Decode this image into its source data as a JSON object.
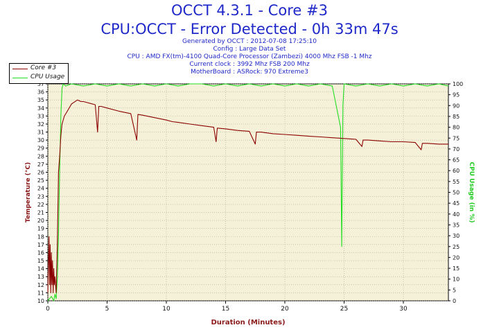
{
  "header": {
    "title": "OCCT 4.3.1 - Core #3",
    "subtitle": "CPU:OCCT - Error Detected - 0h 33m 47s",
    "generated": "Generated by OCCT : 2012-07-08 17:25:10",
    "config": "Config : Large Data Set",
    "cpu": "CPU : AMD FX(tm)-4100 Quad-Core Processor (Zambezi) 4000 Mhz FSB -1 Mhz",
    "clock": "Current clock : 3992 Mhz FSB 200 Mhz",
    "motherboard": "MotherBoard : ASRock: 970 Extreme3"
  },
  "legend": {
    "items": [
      {
        "label": "Core #3",
        "color": "#8b0000"
      },
      {
        "label": "CPU Usage",
        "color": "#22dd22"
      }
    ]
  },
  "colors": {
    "plot_bg": "#f5f1d8",
    "grid": "#a8a890",
    "temp_line": "#8b0000",
    "cpu_line": "#22dd22",
    "left_axis": "#8b1a1a",
    "right_axis": "#22cc22",
    "title": "#1f28c8"
  },
  "chart_data": {
    "type": "line",
    "xlabel": "Duration (Minutes)",
    "ylabel_left": "Temperature (°C)",
    "ylabel_right": "CPU Usage (in %)",
    "xlim": [
      0,
      33.8
    ],
    "ylim_left": [
      10,
      37
    ],
    "ylim_right": [
      0,
      100
    ],
    "x_ticks": [
      0,
      5,
      10,
      15,
      20,
      25,
      30
    ],
    "y_left_ticks": [
      10,
      11,
      12,
      13,
      14,
      15,
      16,
      17,
      18,
      19,
      20,
      21,
      22,
      23,
      24,
      25,
      26,
      27,
      28,
      29,
      30,
      31,
      32,
      33,
      34,
      35,
      36,
      37
    ],
    "y_right_ticks": [
      0,
      5,
      10,
      15,
      20,
      25,
      30,
      35,
      40,
      45,
      50,
      55,
      60,
      65,
      70,
      75,
      80,
      85,
      90,
      95,
      100
    ],
    "grid": true,
    "legend_position": "top-left",
    "series": [
      {
        "name": "Core #3",
        "axis": "left",
        "x": [
          0,
          0.1,
          0.15,
          0.2,
          0.25,
          0.3,
          0.35,
          0.4,
          0.45,
          0.5,
          0.55,
          0.6,
          0.7,
          0.8,
          0.9,
          1.0,
          1.1,
          1.2,
          1.4,
          1.6,
          1.8,
          2.0,
          2.2,
          2.5,
          2.8,
          3.0,
          3.5,
          4.0,
          4.2,
          4.3,
          4.5,
          5.0,
          6.0,
          7.0,
          7.5,
          7.6,
          8.0,
          9.0,
          10.0,
          10.5,
          11.0,
          12.0,
          13.0,
          14.0,
          14.2,
          14.3,
          15.0,
          16.0,
          17.0,
          17.5,
          17.6,
          18.0,
          19.0,
          20.0,
          21.0,
          22.0,
          23.0,
          24.0,
          25.0,
          26.0,
          26.5,
          26.6,
          27.0,
          28.0,
          29.0,
          30.0,
          31.0,
          31.5,
          31.6,
          32.0,
          33.0,
          33.8
        ],
        "values": [
          11,
          18,
          12,
          17,
          11,
          16,
          12,
          15,
          11,
          14,
          12,
          13,
          11,
          17,
          26,
          28,
          30.5,
          32,
          33,
          33.5,
          34,
          34.5,
          34.7,
          35,
          34.8,
          34.8,
          34.6,
          34.4,
          31,
          34.2,
          34.2,
          34,
          33.6,
          33.3,
          30,
          33.2,
          33.1,
          32.8,
          32.5,
          32.3,
          32.2,
          32,
          31.8,
          31.6,
          29.8,
          31.5,
          31.4,
          31.2,
          31.1,
          29.5,
          31,
          31,
          30.8,
          30.7,
          30.6,
          30.5,
          30.4,
          30.3,
          30.2,
          30.1,
          29.2,
          30,
          30,
          29.9,
          29.8,
          29.8,
          29.7,
          28.8,
          29.6,
          29.6,
          29.5,
          29.5
        ]
      },
      {
        "name": "CPU Usage",
        "axis": "right",
        "x": [
          0,
          0.3,
          0.5,
          0.6,
          0.7,
          0.8,
          0.9,
          1.0,
          1.1,
          1.2,
          1.3,
          1.5,
          2.0,
          3.0,
          4.0,
          5.0,
          6.0,
          7.0,
          8.0,
          9.0,
          10.0,
          11.0,
          12.0,
          13.0,
          14.0,
          15.0,
          16.0,
          17.0,
          18.0,
          19.0,
          20.0,
          21.0,
          22.0,
          23.0,
          24.0,
          24.7,
          24.8,
          24.9,
          25.0,
          26.0,
          27.0,
          28.0,
          29.0,
          30.0,
          31.0,
          32.0,
          33.0,
          33.8
        ],
        "values": [
          0,
          2,
          0,
          3,
          1,
          10,
          30,
          60,
          85,
          98,
          100,
          99,
          100,
          99,
          100,
          99,
          100,
          99,
          100,
          99,
          100,
          99,
          100,
          100,
          99,
          100,
          99,
          100,
          99,
          100,
          99,
          100,
          99,
          100,
          99,
          80,
          25,
          90,
          100,
          99,
          100,
          99,
          100,
          99,
          100,
          99,
          100,
          99
        ]
      }
    ]
  }
}
